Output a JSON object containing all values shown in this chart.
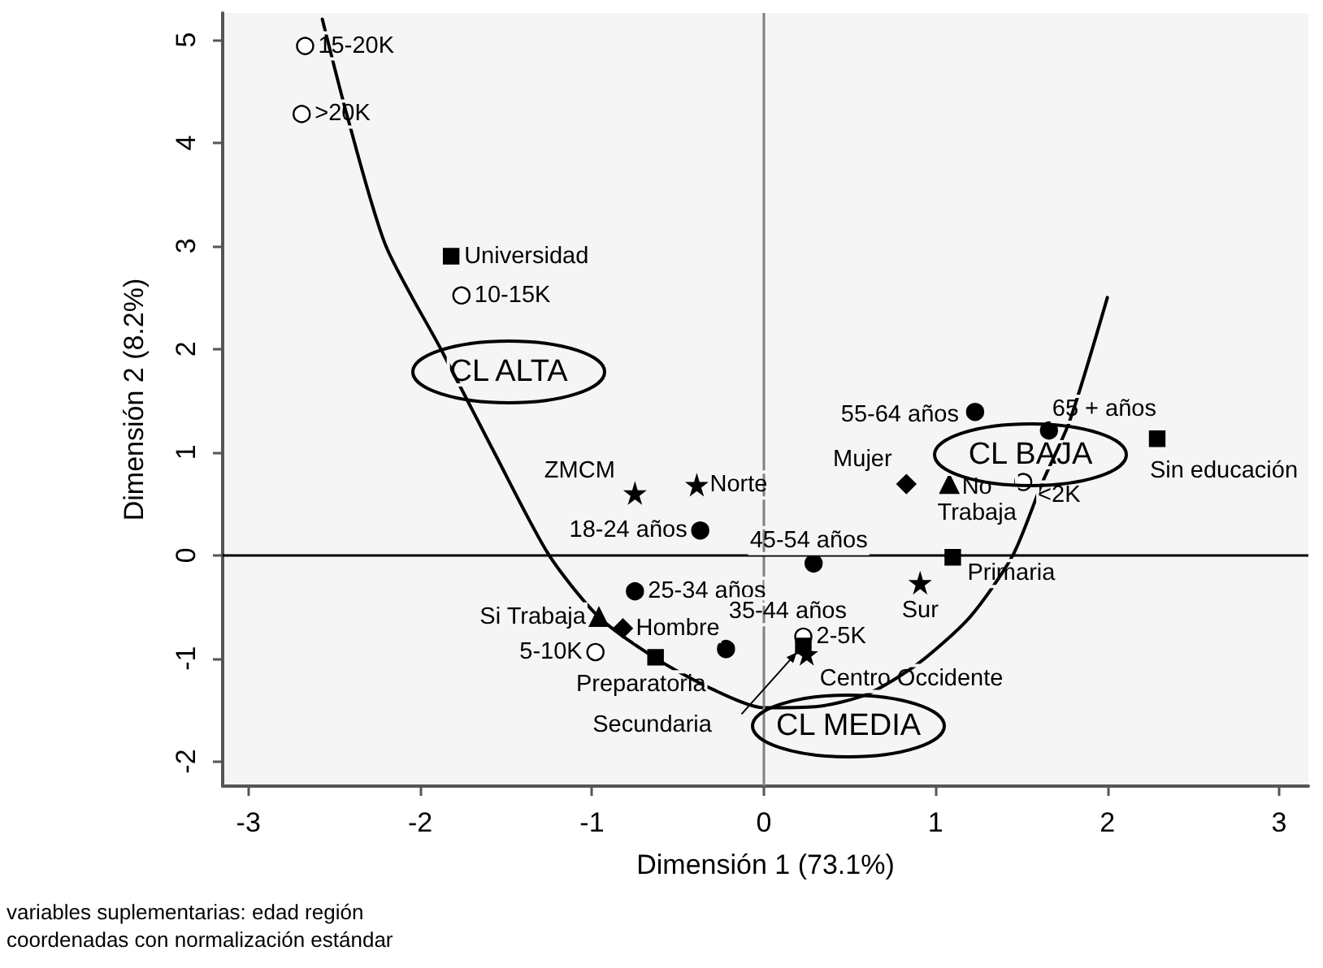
{
  "chart_data": {
    "type": "scatter",
    "xlabel": "Dimensión 1 (73.1%)",
    "ylabel": "Dimensión 2 (8.2%)",
    "xlim": [
      -3.15,
      3.17
    ],
    "ylim": [
      -2.24,
      5.26
    ],
    "xticks": [
      -3,
      -2,
      -1,
      0,
      1,
      2,
      3
    ],
    "yticks": [
      -2,
      -1,
      0,
      1,
      2,
      3,
      4,
      5
    ],
    "grid": false,
    "series": [
      {
        "marker": "circle",
        "color": "#000000",
        "x": [
          -0.37,
          -0.75,
          -0.22,
          0.29,
          1.23,
          1.66
        ],
        "values": [
          0.24,
          -0.35,
          -0.91,
          -0.08,
          1.39,
          1.21
        ]
      },
      {
        "marker": "circle",
        "color": "#ffffff",
        "x": [
          -2.67,
          -2.69,
          -1.76,
          1.51,
          0.23,
          -0.98
        ],
        "values": [
          4.94,
          4.28,
          2.52,
          0.71,
          -0.79,
          -0.94
        ]
      },
      {
        "marker": "square",
        "color": "#000000",
        "x": [
          -1.82,
          2.29,
          1.1,
          -0.63,
          0.23
        ],
        "values": [
          2.9,
          1.13,
          -0.02,
          -0.99,
          -0.88
        ]
      },
      {
        "marker": "star",
        "color": "#000000",
        "x": [
          -0.75,
          -0.39,
          0.91,
          0.25
        ],
        "values": [
          0.6,
          0.68,
          -0.27,
          -0.96
        ]
      },
      {
        "marker": "diamond",
        "color": "#000000",
        "x": [
          0.83,
          -0.82
        ],
        "values": [
          0.69,
          -0.71
        ]
      },
      {
        "marker": "triangle",
        "color": "#000000",
        "x": [
          1.08,
          -0.96
        ],
        "values": [
          0.69,
          -0.6
        ]
      },
      {
        "type": "line",
        "marker": "none",
        "color": "#000000",
        "x": [
          -2.57,
          -2.42,
          -2.2,
          -1.88,
          -1.57,
          -1.25,
          -0.96,
          -0.63,
          -0.3,
          0.0,
          0.3,
          0.6,
          0.9,
          1.2,
          1.45,
          1.62,
          1.78,
          2.0
        ],
        "values": [
          5.2,
          4.23,
          3.0,
          2.0,
          1.0,
          0.0,
          -0.6,
          -1.0,
          -1.3,
          -1.48,
          -1.47,
          -1.35,
          -1.05,
          -0.6,
          0.0,
          0.7,
          1.3,
          2.5
        ]
      }
    ],
    "ref_lines": [
      {
        "axis": "x",
        "value": 0,
        "color": "#808080"
      },
      {
        "axis": "y",
        "value": 0,
        "color": "#000000"
      }
    ],
    "annotations": [
      {
        "text": "18-24 años",
        "x": -0.37,
        "y": 0.24
      },
      {
        "text": "25-34 años",
        "x": -0.75,
        "y": -0.35
      },
      {
        "text": "35-44 años",
        "x": -0.22,
        "y": -0.91
      },
      {
        "text": "45-54 años",
        "x": 0.29,
        "y": -0.08
      },
      {
        "text": "55-64 años",
        "x": 1.23,
        "y": 1.39
      },
      {
        "text": "65 + años",
        "x": 1.66,
        "y": 1.21
      },
      {
        "text": "15-20K",
        "x": -2.67,
        "y": 4.94
      },
      {
        "text": ">20K",
        "x": -2.69,
        "y": 4.28
      },
      {
        "text": "10-15K",
        "x": -1.76,
        "y": 2.52
      },
      {
        "text": "<2K",
        "x": 1.51,
        "y": 0.71
      },
      {
        "text": "2-5K",
        "x": 0.23,
        "y": -0.79
      },
      {
        "text": "5-10K",
        "x": -0.98,
        "y": -0.94
      },
      {
        "text": "Universidad",
        "x": -1.82,
        "y": 2.9
      },
      {
        "text": "Sin educación",
        "x": 2.29,
        "y": 1.13
      },
      {
        "text": "Primaria",
        "x": 1.1,
        "y": -0.02
      },
      {
        "text": "Preparatoria",
        "x": -0.63,
        "y": -0.99
      },
      {
        "text": "Secundaria",
        "x": 0.23,
        "y": -0.88
      },
      {
        "text": "ZMCM",
        "x": -0.75,
        "y": 0.6
      },
      {
        "text": "Norte",
        "x": -0.39,
        "y": 0.68
      },
      {
        "text": "Sur",
        "x": 0.91,
        "y": -0.27
      },
      {
        "text": "Centro Occidente",
        "x": 0.25,
        "y": -0.96
      },
      {
        "text": "Mujer",
        "x": 0.83,
        "y": 0.69
      },
      {
        "text": "Hombre",
        "x": -0.82,
        "y": -0.71
      },
      {
        "text": "No\nTrabaja",
        "x": 1.08,
        "y": 0.69
      },
      {
        "text": "Si Trabaja",
        "x": -0.96,
        "y": -0.6
      },
      "CL ALTA",
      "CL MEDIA",
      "CL BAJA",
      "variables suplementarias: edad región",
      "coordenadas con normalización estándar"
    ]
  }
}
